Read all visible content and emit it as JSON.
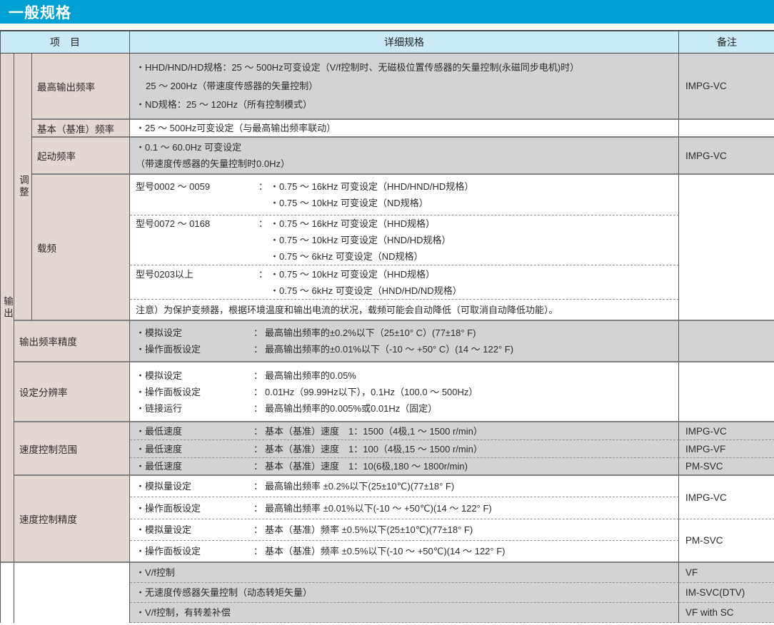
{
  "title": "一般规格",
  "table": {
    "colon": "：",
    "headers": {
      "item": "项　目",
      "detail": "详细规格",
      "remark": "备注"
    },
    "groups": {
      "output": "输出",
      "adjust": "调整"
    },
    "rows": {
      "max_freq": {
        "item": "最高输出频率",
        "lines": [
          "・HHD/HND/HD规格：25 ～ 500Hz可变设定（V/f控制时、无磁极位置传感器的矢量控制(永磁同步电机)时）",
          "25 ～ 200Hz（带速度传感器的矢量控制）",
          "・ND规格：25 ～ 120Hz（所有控制模式）"
        ],
        "remark": "IMPG-VC"
      },
      "base_freq": {
        "item": "基本（基准）频率",
        "lines": [
          "・25 ～ 500Hz可变设定（与最高输出频率联动）"
        ],
        "remark": ""
      },
      "start_freq": {
        "item": "起动频率",
        "lines": [
          "・0.1 ～ 60.0Hz 可变设定",
          "（带速度传感器的矢量控制时0.0Hz）"
        ],
        "remark": "IMPG-VC"
      },
      "carrier": {
        "item": "载频",
        "subrows": [
          {
            "model": "型号0002 ～ 0059",
            "specs": [
              "・0.75 ～ 16kHz 可变设定（HHD/HND/HD规格）",
              "・0.75 ～ 10kHz 可变设定（ND规格）"
            ]
          },
          {
            "model": "型号0072 ～ 0168",
            "specs": [
              "・0.75 ～ 16kHz 可变设定（HHD规格）",
              "・0.75 ～ 10kHz 可变设定（HND/HD规格）",
              "・0.75 ～ 6kHz 可变设定（ND规格）"
            ]
          },
          {
            "model": "型号0203以上",
            "specs": [
              "・0.75 ～ 10kHz 可变设定（HHD规格）",
              "・0.75 ～ 6kHz 可变设定（HND/HD/ND规格）"
            ]
          }
        ],
        "note": "注意）为保护变频器，根据环境温度和输出电流的状况，载频可能会自动降低（可取消自动降低功能）。",
        "remark": ""
      },
      "freq_accuracy": {
        "item": "输出频率精度",
        "pairs": [
          {
            "label": "・模拟设定",
            "value": "最高输出频率的±0.2%以下（25±10° C）(77±18° F)"
          },
          {
            "label": "・操作面板设定",
            "value": "最高输出频率的±0.01%以下（-10 ～ +50° C）(14 ～ 122° F)"
          }
        ],
        "remark": ""
      },
      "resolution": {
        "item": "设定分辨率",
        "pairs": [
          {
            "label": "・模拟设定",
            "value": "最高输出频率的0.05%"
          },
          {
            "label": "・操作面板设定",
            "value": "0.01Hz（99.99Hz以下），0.1Hz（100.0 ～ 500Hz）"
          },
          {
            "label": "・链接运行",
            "value": "最高输出频率的0.005%或0.01Hz（固定）"
          }
        ],
        "remark": ""
      },
      "speed_range": {
        "item": "速度控制范围",
        "subrows": [
          {
            "label": "・最低速度",
            "value": "基本（基准）速度　1：1500（4极,1 ～ 1500 r/min）",
            "remark": "IMPG-VC"
          },
          {
            "label": "・最低速度",
            "value": "基本（基准）速度　1：100（4极,15 ～ 1500 r/min）",
            "remark": "IMPG-VF"
          },
          {
            "label": "・最低速度",
            "value": "基本（基准）速度　1：10(6极,180 ～ 1800r/min)",
            "remark": "PM-SVC"
          }
        ]
      },
      "speed_accuracy": {
        "item": "速度控制精度",
        "subrows": [
          {
            "label": "・模拟量设定",
            "value": "最高输出频率 ±0.2%以下(25±10℃)(77±18° F)"
          },
          {
            "label": "・操作面板设定",
            "value": "最高输出频率 ±0.01%以下(-10 ～ +50℃)(14 ～ 122° F)"
          },
          {
            "label": "・模拟量设定",
            "value": "基本（基准）频率 ±0.5%以下(25±10℃)(77±18° F)"
          },
          {
            "label": "・操作面板设定",
            "value": "基本（基准）频率 ±0.5%以下(-10 ～ +50℃)(14 ～ 122° F)"
          }
        ],
        "remark_top": "IMPG-VC",
        "remark_bottom": "PM-SVC"
      },
      "control_modes": {
        "subrows": [
          {
            "text": "・V/f控制",
            "remark": "VF"
          },
          {
            "text": "・无速度传感器矢量控制（动态转矩矢量）",
            "remark": "IM-SVC(DTV)"
          },
          {
            "text": "・V/f控制，有转差补偿",
            "remark": "VF with SC"
          }
        ]
      }
    }
  }
}
